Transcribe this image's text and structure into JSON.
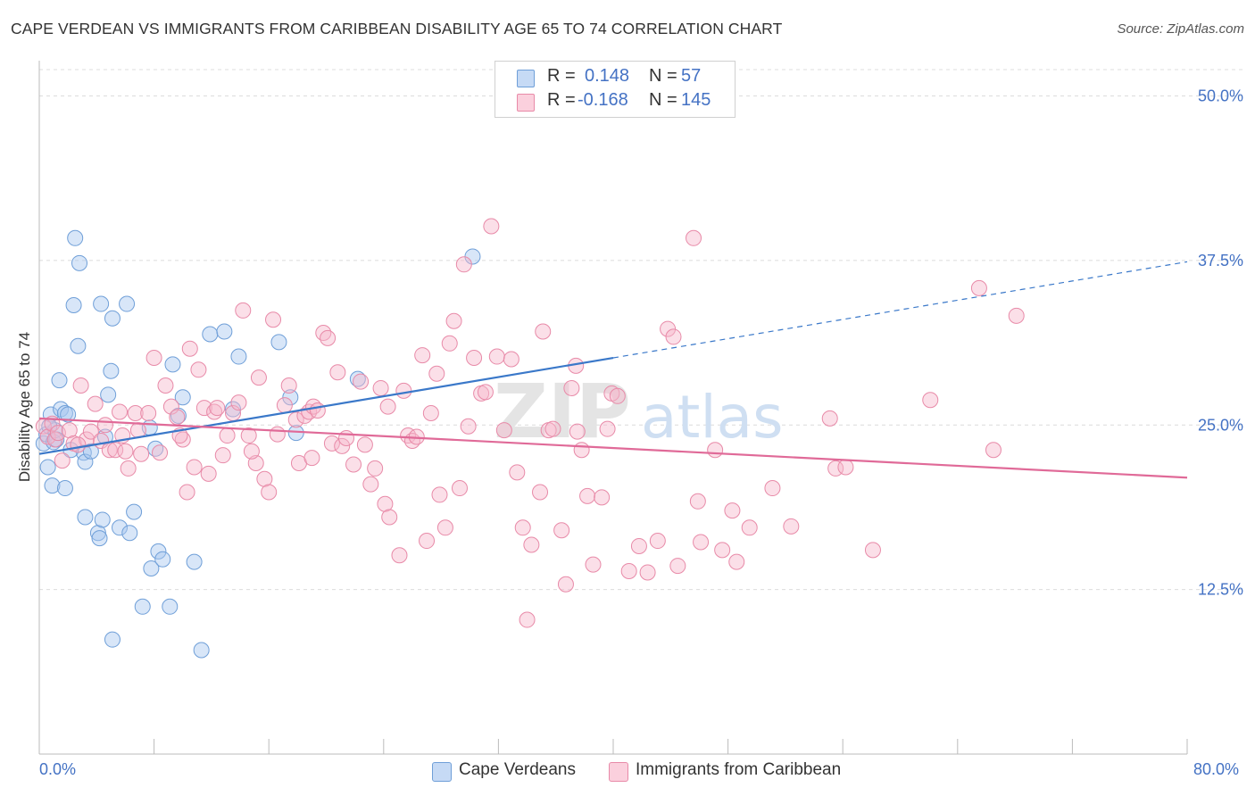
{
  "header": {
    "title": "CAPE VERDEAN VS IMMIGRANTS FROM CARIBBEAN DISABILITY AGE 65 TO 74 CORRELATION CHART",
    "source": "Source: ZipAtlas.com"
  },
  "legend": {
    "r_label": "R =",
    "n_label": "N =",
    "rows": [
      {
        "r": "0.148",
        "n": "57",
        "color": "#a8c8f0",
        "border": "#6f9fd8"
      },
      {
        "r": "-0.168",
        "n": "145",
        "color": "#f7b8cc",
        "border": "#e88aa8"
      }
    ]
  },
  "bottom_legend": [
    {
      "label": "Cape Verdeans",
      "color": "#a8c8f0",
      "border": "#6f9fd8"
    },
    {
      "label": "Immigrants from Caribbean",
      "color": "#f7b8cc",
      "border": "#e88aa8"
    }
  ],
  "watermark": {
    "zip": "ZIP",
    "atlas": "atlas"
  },
  "chart_data": {
    "type": "scatter",
    "title": "CAPE VERDEAN VS IMMIGRANTS FROM CARIBBEAN DISABILITY AGE 65 TO 74 CORRELATION CHART",
    "ylabel": "Disability Age 65 to 74",
    "xlabel": "",
    "xlim": [
      0,
      80
    ],
    "ylim": [
      0,
      52
    ],
    "x_tick_labels": [
      "0.0%",
      "80.0%"
    ],
    "y_ticks": [
      12.5,
      25.0,
      37.5,
      50.0
    ],
    "y_tick_labels": [
      "12.5%",
      "25.0%",
      "37.5%",
      "50.0%"
    ],
    "grid": true,
    "series": [
      {
        "name": "Cape Verdeans",
        "color": "#a8c8f0",
        "stroke": "#6f9fd8",
        "trend": {
          "x0": 0,
          "y0": 22.8,
          "x1": 40,
          "y1": 30.1,
          "dash_to_x": 80,
          "dash_to_y": 37.4,
          "color": "#3a78c9"
        },
        "points": [
          [
            0.3,
            23.6
          ],
          [
            0.5,
            24.3
          ],
          [
            0.6,
            21.8
          ],
          [
            0.8,
            25.8
          ],
          [
            0.9,
            20.4
          ],
          [
            1.0,
            23.7
          ],
          [
            1.1,
            24.6
          ],
          [
            1.4,
            28.4
          ],
          [
            1.5,
            26.2
          ],
          [
            1.8,
            25.9
          ],
          [
            1.8,
            20.2
          ],
          [
            2.0,
            25.8
          ],
          [
            2.5,
            39.2
          ],
          [
            2.4,
            34.1
          ],
          [
            2.7,
            31.0
          ],
          [
            2.8,
            37.3
          ],
          [
            3.1,
            22.9
          ],
          [
            3.2,
            22.2
          ],
          [
            3.2,
            18.0
          ],
          [
            3.6,
            23.0
          ],
          [
            4.1,
            16.8
          ],
          [
            4.2,
            16.4
          ],
          [
            4.4,
            17.8
          ],
          [
            4.3,
            34.2
          ],
          [
            4.6,
            24.1
          ],
          [
            4.8,
            27.3
          ],
          [
            5.0,
            29.1
          ],
          [
            5.1,
            33.1
          ],
          [
            5.1,
            8.7
          ],
          [
            5.6,
            17.2
          ],
          [
            6.1,
            34.2
          ],
          [
            6.3,
            16.8
          ],
          [
            6.6,
            18.4
          ],
          [
            7.2,
            11.2
          ],
          [
            7.8,
            14.1
          ],
          [
            7.7,
            24.8
          ],
          [
            8.1,
            23.2
          ],
          [
            8.3,
            15.4
          ],
          [
            8.6,
            14.8
          ],
          [
            9.1,
            11.2
          ],
          [
            9.3,
            29.6
          ],
          [
            9.7,
            25.7
          ],
          [
            10.0,
            27.1
          ],
          [
            10.8,
            14.6
          ],
          [
            11.3,
            7.9
          ],
          [
            11.9,
            31.9
          ],
          [
            12.9,
            32.1
          ],
          [
            13.5,
            26.2
          ],
          [
            13.9,
            30.2
          ],
          [
            16.7,
            31.3
          ],
          [
            17.5,
            27.1
          ],
          [
            17.9,
            24.4
          ],
          [
            22.2,
            28.5
          ],
          [
            30.2,
            37.8
          ],
          [
            1.2,
            23.9
          ],
          [
            2.2,
            23.1
          ],
          [
            0.7,
            24.9
          ]
        ]
      },
      {
        "name": "Immigrants from Caribbean",
        "color": "#f7b8cc",
        "stroke": "#e88aa8",
        "trend": {
          "x0": 0,
          "y0": 25.5,
          "x1": 80,
          "y1": 21.0,
          "color": "#e06a98"
        },
        "points": [
          [
            0.3,
            24.9
          ],
          [
            0.6,
            24.1
          ],
          [
            0.9,
            25.1
          ],
          [
            1.1,
            23.9
          ],
          [
            1.3,
            24.4
          ],
          [
            1.6,
            22.3
          ],
          [
            2.1,
            24.6
          ],
          [
            2.4,
            23.6
          ],
          [
            2.9,
            28.0
          ],
          [
            3.3,
            23.9
          ],
          [
            3.6,
            24.5
          ],
          [
            3.9,
            26.6
          ],
          [
            4.3,
            23.8
          ],
          [
            4.6,
            25.0
          ],
          [
            4.9,
            23.1
          ],
          [
            5.3,
            23.1
          ],
          [
            5.6,
            26.0
          ],
          [
            5.8,
            24.2
          ],
          [
            6.2,
            21.7
          ],
          [
            6.7,
            25.9
          ],
          [
            6.9,
            24.6
          ],
          [
            7.1,
            22.8
          ],
          [
            7.6,
            25.9
          ],
          [
            8.0,
            30.1
          ],
          [
            8.4,
            22.9
          ],
          [
            8.8,
            28.0
          ],
          [
            9.2,
            26.4
          ],
          [
            9.6,
            25.6
          ],
          [
            10.0,
            23.9
          ],
          [
            10.3,
            19.9
          ],
          [
            10.5,
            30.8
          ],
          [
            10.8,
            21.8
          ],
          [
            11.1,
            29.2
          ],
          [
            11.5,
            26.3
          ],
          [
            11.8,
            21.3
          ],
          [
            12.2,
            26.0
          ],
          [
            12.4,
            26.3
          ],
          [
            12.8,
            22.7
          ],
          [
            13.1,
            24.2
          ],
          [
            13.5,
            25.9
          ],
          [
            13.9,
            26.7
          ],
          [
            14.2,
            33.7
          ],
          [
            14.6,
            24.2
          ],
          [
            15.1,
            22.1
          ],
          [
            15.3,
            28.6
          ],
          [
            15.7,
            20.9
          ],
          [
            16.0,
            19.9
          ],
          [
            16.3,
            33.0
          ],
          [
            16.6,
            24.3
          ],
          [
            17.1,
            26.5
          ],
          [
            17.4,
            28.0
          ],
          [
            17.9,
            25.4
          ],
          [
            18.1,
            22.1
          ],
          [
            18.5,
            25.7
          ],
          [
            18.8,
            26.0
          ],
          [
            19.1,
            26.4
          ],
          [
            19.4,
            26.1
          ],
          [
            19.8,
            32.0
          ],
          [
            20.1,
            31.6
          ],
          [
            20.4,
            23.6
          ],
          [
            20.8,
            29.0
          ],
          [
            21.1,
            23.4
          ],
          [
            21.4,
            24.0
          ],
          [
            21.9,
            22.0
          ],
          [
            22.4,
            28.3
          ],
          [
            22.7,
            23.5
          ],
          [
            23.1,
            20.5
          ],
          [
            23.4,
            21.7
          ],
          [
            23.8,
            27.8
          ],
          [
            24.1,
            19.0
          ],
          [
            24.3,
            26.4
          ],
          [
            24.4,
            18.0
          ],
          [
            25.1,
            15.1
          ],
          [
            25.4,
            27.6
          ],
          [
            25.7,
            24.2
          ],
          [
            26.0,
            23.8
          ],
          [
            26.3,
            24.1
          ],
          [
            26.7,
            30.3
          ],
          [
            27.0,
            16.2
          ],
          [
            27.3,
            25.9
          ],
          [
            27.7,
            28.9
          ],
          [
            27.9,
            19.7
          ],
          [
            28.3,
            17.2
          ],
          [
            28.6,
            31.2
          ],
          [
            28.9,
            32.9
          ],
          [
            29.3,
            20.2
          ],
          [
            29.6,
            37.2
          ],
          [
            29.9,
            24.9
          ],
          [
            30.3,
            30.1
          ],
          [
            30.8,
            27.4
          ],
          [
            31.1,
            27.5
          ],
          [
            31.5,
            40.1
          ],
          [
            31.9,
            30.2
          ],
          [
            32.4,
            24.6
          ],
          [
            32.9,
            30.0
          ],
          [
            33.3,
            21.4
          ],
          [
            33.7,
            17.2
          ],
          [
            34.0,
            10.2
          ],
          [
            34.3,
            15.9
          ],
          [
            34.9,
            19.9
          ],
          [
            35.1,
            32.1
          ],
          [
            35.5,
            24.6
          ],
          [
            35.8,
            24.7
          ],
          [
            36.4,
            17.0
          ],
          [
            36.7,
            12.9
          ],
          [
            37.1,
            27.8
          ],
          [
            37.4,
            29.5
          ],
          [
            37.8,
            23.1
          ],
          [
            38.2,
            19.6
          ],
          [
            38.6,
            14.4
          ],
          [
            39.2,
            19.5
          ],
          [
            39.6,
            24.7
          ],
          [
            39.9,
            27.4
          ],
          [
            40.3,
            27.2
          ],
          [
            41.1,
            13.9
          ],
          [
            41.8,
            15.8
          ],
          [
            42.4,
            13.8
          ],
          [
            43.1,
            16.2
          ],
          [
            43.8,
            32.3
          ],
          [
            44.2,
            31.7
          ],
          [
            44.5,
            14.3
          ],
          [
            45.6,
            39.2
          ],
          [
            45.9,
            19.2
          ],
          [
            46.1,
            16.1
          ],
          [
            47.1,
            23.1
          ],
          [
            47.6,
            15.5
          ],
          [
            48.3,
            18.5
          ],
          [
            48.6,
            14.6
          ],
          [
            49.5,
            17.2
          ],
          [
            51.1,
            20.2
          ],
          [
            52.4,
            17.3
          ],
          [
            55.1,
            25.5
          ],
          [
            55.5,
            21.7
          ],
          [
            56.2,
            21.8
          ],
          [
            58.1,
            15.5
          ],
          [
            62.1,
            26.9
          ],
          [
            65.5,
            35.4
          ],
          [
            66.5,
            23.1
          ],
          [
            68.1,
            33.3
          ],
          [
            37.5,
            24.5
          ],
          [
            2.7,
            23.5
          ],
          [
            6.0,
            23.0
          ],
          [
            9.8,
            24.2
          ],
          [
            14.8,
            23.0
          ],
          [
            19.0,
            22.5
          ]
        ]
      }
    ]
  }
}
